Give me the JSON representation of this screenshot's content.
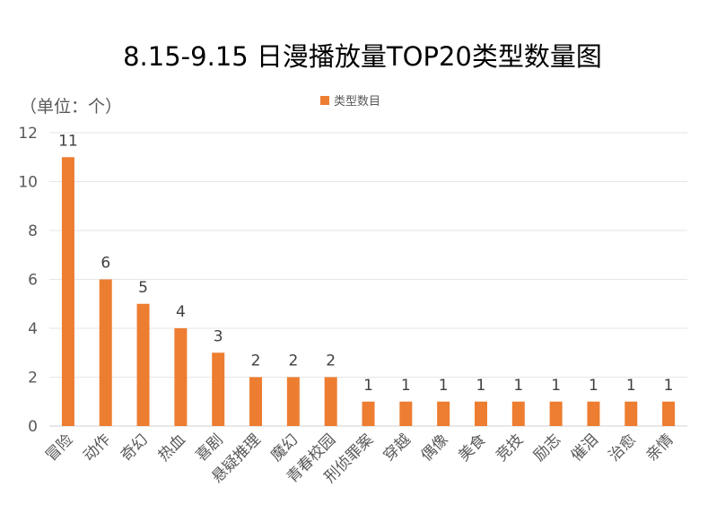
{
  "chart_data": {
    "type": "bar",
    "title": "8.15-9.15 日漫播放量TOP20类型数量图",
    "unit_label": "（单位：个）",
    "xlabel": "",
    "ylabel": "",
    "ylim": [
      0,
      12
    ],
    "yticks": [
      0,
      2,
      4,
      6,
      8,
      10,
      12
    ],
    "grid": true,
    "legend_position": "top",
    "categories": [
      "冒险",
      "动作",
      "奇幻",
      "热血",
      "喜剧",
      "悬疑推理",
      "魔幻",
      "青春校园",
      "刑侦罪案",
      "穿越",
      "偶像",
      "美食",
      "竞技",
      "励志",
      "催泪",
      "治愈",
      "亲情"
    ],
    "series": [
      {
        "name": "类型数目",
        "color": "#ED7D31",
        "values": [
          11,
          6,
          5,
          4,
          3,
          2,
          2,
          2,
          1,
          1,
          1,
          1,
          1,
          1,
          1,
          1,
          1
        ]
      }
    ]
  }
}
